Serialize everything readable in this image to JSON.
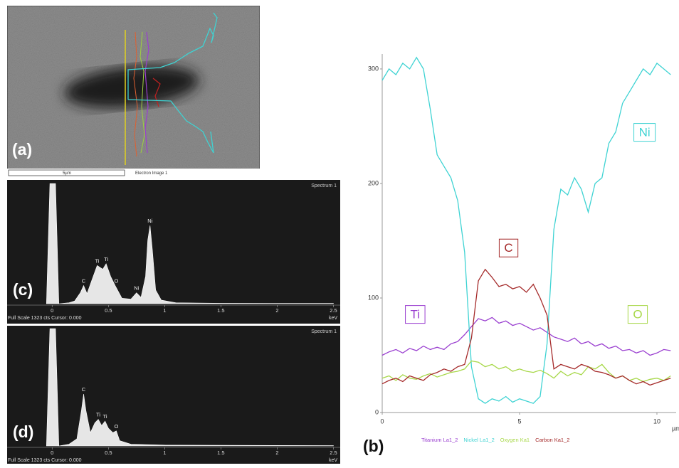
{
  "image_panel": {
    "label": "(a)",
    "scale": "5µm",
    "caption": "Electron Image 1"
  },
  "chart_data": [
    {
      "type": "line",
      "panel_label": "(b)",
      "x_unit": "µm",
      "x": [
        0,
        0.25,
        0.5,
        0.75,
        1,
        1.25,
        1.5,
        1.75,
        2,
        2.25,
        2.5,
        2.75,
        3,
        3.25,
        3.5,
        3.75,
        4,
        4.25,
        4.5,
        4.75,
        5,
        5.25,
        5.5,
        5.75,
        6,
        6.25,
        6.5,
        6.75,
        7,
        7.25,
        7.5,
        7.75,
        8,
        8.25,
        8.5,
        8.75,
        9,
        9.25,
        9.5,
        9.75,
        10,
        10.25,
        10.5
      ],
      "xlim": [
        0,
        10.7
      ],
      "ylim": [
        0,
        313
      ],
      "xticks": [
        0,
        5,
        10
      ],
      "yticks": [
        0,
        100,
        200,
        300
      ],
      "series": [
        {
          "name": "Titanium La1_2",
          "color": "#9a3fd0",
          "values": [
            50,
            53,
            55,
            52,
            56,
            54,
            58,
            55,
            57,
            55,
            60,
            62,
            68,
            75,
            82,
            80,
            83,
            78,
            80,
            76,
            78,
            75,
            72,
            74,
            70,
            66,
            64,
            62,
            65,
            60,
            62,
            58,
            60,
            56,
            58,
            54,
            55,
            52,
            54,
            50,
            52,
            55,
            54
          ]
        },
        {
          "name": "Nickel La1_2",
          "color": "#3fd3d3",
          "values": [
            290,
            300,
            295,
            305,
            300,
            310,
            300,
            265,
            225,
            215,
            205,
            185,
            140,
            40,
            12,
            8,
            12,
            10,
            14,
            9,
            12,
            10,
            8,
            14,
            60,
            160,
            195,
            190,
            205,
            195,
            175,
            200,
            205,
            235,
            245,
            270,
            280,
            290,
            300,
            295,
            305,
            300,
            295
          ]
        },
        {
          "name": "Oxygen Ka1",
          "color": "#a8d84a",
          "values": [
            30,
            32,
            28,
            33,
            30,
            29,
            32,
            34,
            31,
            33,
            35,
            36,
            38,
            45,
            44,
            40,
            42,
            38,
            40,
            36,
            38,
            36,
            35,
            37,
            34,
            30,
            36,
            32,
            35,
            33,
            40,
            38,
            42,
            35,
            30,
            32,
            28,
            30,
            27,
            29,
            30,
            28,
            32
          ]
        },
        {
          "name": "Carbon Ka1_2",
          "color": "#a52a2a",
          "values": [
            25,
            28,
            30,
            27,
            32,
            30,
            28,
            33,
            35,
            38,
            36,
            40,
            42,
            65,
            115,
            125,
            118,
            110,
            112,
            108,
            110,
            105,
            112,
            100,
            85,
            38,
            42,
            40,
            38,
            42,
            40,
            36,
            35,
            33,
            30,
            32,
            28,
            25,
            27,
            24,
            26,
            28,
            30
          ]
        }
      ],
      "annotations": [
        {
          "text": "Ni",
          "x": 9.55,
          "y": 244,
          "color": "#3fd3d3"
        },
        {
          "text": "C",
          "x": 4.6,
          "y": 143,
          "color": "#a52a2a"
        },
        {
          "text": "Ti",
          "x": 1.2,
          "y": 85,
          "color": "#9a3fd0"
        },
        {
          "text": "O",
          "x": 9.3,
          "y": 85,
          "color": "#a8d84a"
        }
      ]
    },
    {
      "type": "area",
      "panel_label": "(c)",
      "title": "Spectrum 1",
      "footer": "Full Scale 1323 cts Cursor: 0.000",
      "x_unit": "keV",
      "color": "#e6e6e6",
      "x": [
        -0.05,
        -0.02,
        0,
        0.03,
        0.06,
        0.15,
        0.2,
        0.25,
        0.28,
        0.31,
        0.35,
        0.4,
        0.45,
        0.48,
        0.52,
        0.56,
        0.62,
        0.7,
        0.75,
        0.79,
        0.83,
        0.85,
        0.87,
        0.89,
        0.92,
        0.97,
        1.1,
        1.5,
        2.5
      ],
      "values": [
        0,
        1323,
        1323,
        1323,
        0,
        10,
        30,
        120,
        200,
        110,
        250,
        420,
        380,
        440,
        300,
        200,
        60,
        50,
        120,
        70,
        300,
        700,
        860,
        600,
        150,
        40,
        10,
        5,
        3
      ],
      "xlim": [
        -0.4,
        2.56
      ],
      "ylim": [
        0,
        1323
      ],
      "xticks": [
        0,
        0.5,
        1,
        1.5,
        2,
        2.5
      ],
      "peak_labels": [
        {
          "text": "C",
          "x": 0.28,
          "y": 200
        },
        {
          "text": "Ti",
          "x": 0.4,
          "y": 420
        },
        {
          "text": "Ti",
          "x": 0.48,
          "y": 440
        },
        {
          "text": "O",
          "x": 0.57,
          "y": 200
        },
        {
          "text": "Ni",
          "x": 0.75,
          "y": 120
        },
        {
          "text": "Ni",
          "x": 0.87,
          "y": 860
        }
      ]
    },
    {
      "type": "area",
      "panel_label": "(d)",
      "title": "Spectrum 1",
      "footer": "Full Scale 1323 cts Cursor: 0.000",
      "x_unit": "keV",
      "color": "#e6e6e6",
      "x": [
        -0.05,
        -0.02,
        0,
        0.03,
        0.06,
        0.15,
        0.22,
        0.26,
        0.28,
        0.3,
        0.34,
        0.38,
        0.41,
        0.44,
        0.47,
        0.5,
        0.54,
        0.57,
        0.6,
        0.7,
        1,
        2.5
      ],
      "values": [
        0,
        1323,
        1323,
        1323,
        0,
        20,
        80,
        400,
        585,
        400,
        150,
        260,
        300,
        230,
        280,
        200,
        150,
        170,
        60,
        20,
        10,
        3
      ],
      "xlim": [
        -0.4,
        2.56
      ],
      "ylim": [
        0,
        1323
      ],
      "xticks": [
        0,
        0.5,
        1,
        1.5,
        2,
        2.5
      ],
      "peak_labels": [
        {
          "text": "C",
          "x": 0.28,
          "y": 585
        },
        {
          "text": "Ti",
          "x": 0.41,
          "y": 300
        },
        {
          "text": "Ti",
          "x": 0.47,
          "y": 280
        },
        {
          "text": "O",
          "x": 0.57,
          "y": 170
        }
      ]
    }
  ]
}
